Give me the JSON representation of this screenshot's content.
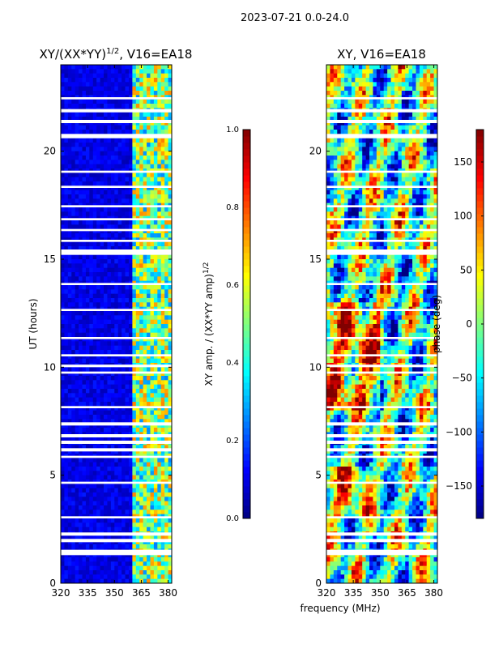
{
  "chart_data": {
    "suptitle": "2023-07-21 0.0-24.0",
    "xlabel": "frequency (MHz)",
    "ylabel": "UT (hours)",
    "type": "heatmap",
    "panels": [
      {
        "title_prefix": "XY/(XX*YY)",
        "title_exponent": "1/2",
        "title_suffix": ", V16=EA18",
        "xlim": [
          320,
          382
        ],
        "ylim": [
          0,
          24
        ],
        "xticks": [
          "320",
          "335",
          "350",
          "365",
          "380"
        ],
        "xtick_values": [
          320,
          335,
          350,
          365,
          380
        ],
        "yticks": [
          "0",
          "5",
          "10",
          "15",
          "20"
        ],
        "ytick_values": [
          0,
          5,
          10,
          15,
          20
        ],
        "colorbar": {
          "label": "XY amp. / (XX*YY amp)",
          "label_exponent": "1/2",
          "range": [
            0.0,
            1.0
          ],
          "ticks": [
            "0.0",
            "0.2",
            "0.4",
            "0.6",
            "0.8",
            "1.0"
          ],
          "tick_values": [
            0.0,
            0.2,
            0.4,
            0.6,
            0.8,
            1.0
          ]
        },
        "quantity": "amplitude",
        "strong_band_mhz": [
          361,
          382
        ]
      },
      {
        "title_prefix": "XY",
        "title_exponent": "",
        "title_suffix": ", V16=EA18",
        "xlim": [
          320,
          382
        ],
        "ylim": [
          0,
          24
        ],
        "xticks": [
          "320",
          "335",
          "350",
          "365",
          "380"
        ],
        "xtick_values": [
          320,
          335,
          350,
          365,
          380
        ],
        "yticks": [
          "0",
          "5",
          "10",
          "15",
          "20"
        ],
        "ytick_values": [
          0,
          5,
          10,
          15,
          20
        ],
        "colorbar": {
          "label": "phase (deg)",
          "label_exponent": "",
          "range": [
            -180,
            180
          ],
          "ticks": [
            "−150",
            "−100",
            "−50",
            "0",
            "50",
            "100",
            "150"
          ],
          "tick_values": [
            -150,
            -100,
            -50,
            0,
            50,
            100,
            150
          ]
        },
        "quantity": "phase"
      }
    ],
    "flagged_time_ranges_hours": [
      [
        1.3,
        1.55
      ],
      [
        1.9,
        2.05
      ],
      [
        2.2,
        2.35
      ],
      [
        3.0,
        3.1
      ],
      [
        4.6,
        4.7
      ],
      [
        5.8,
        5.9
      ],
      [
        6.1,
        6.25
      ],
      [
        6.45,
        6.6
      ],
      [
        6.75,
        6.9
      ],
      [
        7.3,
        7.45
      ],
      [
        8.1,
        8.2
      ],
      [
        9.7,
        9.8
      ],
      [
        10.0,
        10.12
      ],
      [
        10.5,
        10.6
      ],
      [
        11.3,
        11.4
      ],
      [
        12.6,
        12.7
      ],
      [
        13.8,
        13.9
      ],
      [
        15.2,
        15.45
      ],
      [
        15.8,
        15.9
      ],
      [
        16.3,
        16.4
      ],
      [
        16.8,
        16.9
      ],
      [
        17.4,
        17.5
      ],
      [
        18.3,
        18.4
      ],
      [
        19.0,
        19.1
      ],
      [
        20.6,
        20.8
      ],
      [
        21.3,
        21.45
      ],
      [
        21.8,
        21.95
      ],
      [
        22.4,
        22.5
      ]
    ]
  }
}
